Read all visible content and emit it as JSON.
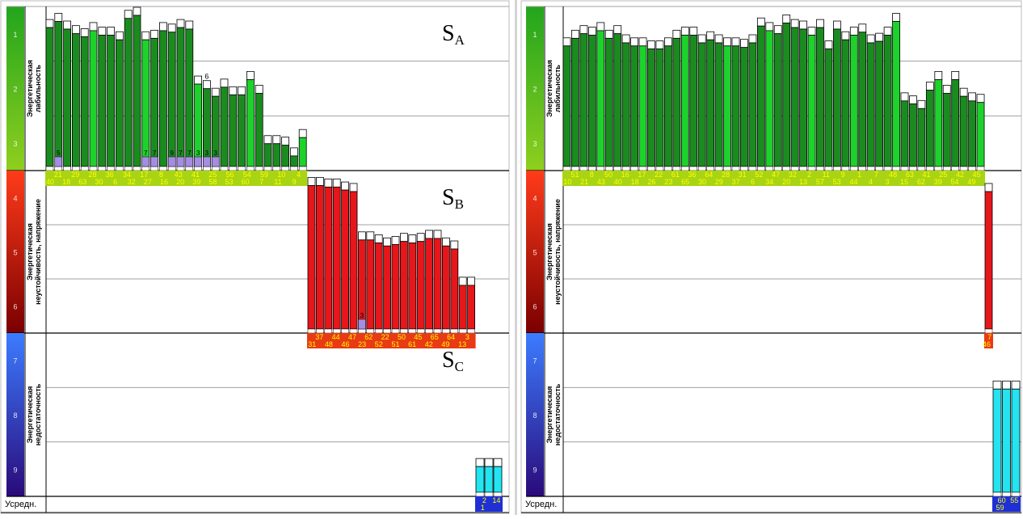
{
  "zones": [
    {
      "name": "zone1",
      "ticks": [
        "1",
        "2",
        "3"
      ],
      "label": "Энергетическая лабильность",
      "label_lines": [
        "Энергетическая",
        "лабильность"
      ],
      "colors": [
        "#22a51d",
        "#8fcf1e"
      ],
      "tag_bg": "#a8d414",
      "tag_fg": "#ffff00"
    },
    {
      "name": "zone2",
      "ticks": [
        "4",
        "5",
        "6"
      ],
      "label": "Энергетическая неустойчивость, напряжение",
      "label_lines": [
        "Энергетическая",
        "неустойчивость, напряжение"
      ],
      "colors": [
        "#ff3b1a",
        "#7a0000"
      ],
      "tag_bg": "#e83a14",
      "tag_fg": "#ffff00"
    },
    {
      "name": "zone3",
      "ticks": [
        "7",
        "8",
        "9"
      ],
      "label": "Энергетическая недостаточность",
      "label_lines": [
        "Энергетическая",
        "недостаточность"
      ],
      "colors": [
        "#3c7cff",
        "#2a0a7a"
      ],
      "tag_bg": "#1f2fd6",
      "tag_fg": "#ffff00"
    }
  ],
  "footer_label": "Усредн.",
  "chart_data": [
    {
      "type": "bar",
      "name": "left-chart",
      "section_labels": [
        {
          "main": "S",
          "sub": "A",
          "zone": 0
        },
        {
          "main": "S",
          "sub": "B",
          "zone": 1
        },
        {
          "main": "S",
          "sub": "C",
          "zone": 2
        }
      ],
      "groups": [
        {
          "zone": 0,
          "light_every": 6,
          "values": [
            0.92,
            0.96,
            0.91,
            0.88,
            0.86,
            0.9,
            0.87,
            0.87,
            0.84,
            0.98,
            1.0,
            0.84,
            0.85,
            0.9,
            0.89,
            0.92,
            0.91,
            0.55,
            0.52,
            0.47,
            0.53,
            0.48,
            0.48,
            0.58,
            0.49,
            0.16,
            0.16,
            0.15,
            0.08,
            0.2
          ],
          "labels_top": [
            "21",
            "29",
            "28",
            "36",
            "34",
            "17",
            "8",
            "43",
            "41",
            "25",
            "56",
            "54",
            "59",
            "10",
            "4"
          ],
          "labels_bottom": [
            "40",
            "18",
            "63",
            "30",
            "6",
            "32",
            "27",
            "16",
            "20",
            "39",
            "58",
            "53",
            "60",
            "7",
            "11",
            "9"
          ],
          "marks": [
            {
              "i": 1,
              "t": "5"
            },
            {
              "i": 11,
              "t": "7"
            },
            {
              "i": 12,
              "t": "7"
            },
            {
              "i": 14,
              "t": "9"
            },
            {
              "i": 15,
              "t": "7"
            },
            {
              "i": 16,
              "t": "7"
            },
            {
              "i": 17,
              "t": "3"
            },
            {
              "i": 18,
              "t": "3"
            },
            {
              "i": 19,
              "t": "3"
            },
            {
              "i": 18,
              "t": "6",
              "top": true
            }
          ]
        },
        {
          "zone": 1,
          "light_every": 0,
          "values": [
            0.96,
            0.96,
            0.95,
            0.95,
            0.93,
            0.92,
            0.6,
            0.6,
            0.58,
            0.56,
            0.57,
            0.59,
            0.58,
            0.59,
            0.61,
            0.61,
            0.56,
            0.54,
            0.3,
            0.3
          ],
          "labels_top": [
            "37",
            "44",
            "47",
            "62",
            "22",
            "50",
            "45",
            "65",
            "64",
            "3"
          ],
          "labels_bottom": [
            "31",
            "48",
            "46",
            "23",
            "52",
            "51",
            "61",
            "42",
            "49",
            "13"
          ],
          "marks": [
            {
              "i": 6,
              "t": "3"
            }
          ]
        },
        {
          "zone": 2,
          "light_every": 0,
          "values": [
            0.18,
            0.18,
            0.18
          ],
          "labels_top": [
            "2",
            "14"
          ],
          "labels_bottom": [
            "1"
          ],
          "marks": []
        }
      ]
    },
    {
      "type": "bar",
      "name": "right-chart",
      "section_labels": [],
      "groups": [
        {
          "zone": 0,
          "light_every": 5,
          "values": [
            0.8,
            0.85,
            0.88,
            0.87,
            0.9,
            0.85,
            0.88,
            0.82,
            0.8,
            0.8,
            0.78,
            0.78,
            0.8,
            0.85,
            0.87,
            0.87,
            0.82,
            0.84,
            0.82,
            0.8,
            0.8,
            0.79,
            0.82,
            0.93,
            0.9,
            0.88,
            0.95,
            0.92,
            0.91,
            0.87,
            0.92,
            0.78,
            0.91,
            0.84,
            0.87,
            0.89,
            0.82,
            0.83,
            0.87,
            0.96,
            0.44,
            0.42,
            0.39,
            0.51,
            0.58,
            0.49,
            0.58,
            0.47,
            0.44,
            0.43
          ],
          "labels_top": [
            "51",
            "8",
            "50",
            "16",
            "17",
            "22",
            "61",
            "36",
            "64",
            "28",
            "31",
            "52",
            "47",
            "32",
            "2",
            "11",
            "9",
            "1",
            "7",
            "48",
            "63",
            "41",
            "25",
            "42",
            "45"
          ],
          "labels_bottom": [
            "10",
            "21",
            "43",
            "40",
            "18",
            "26",
            "23",
            "65",
            "30",
            "29",
            "37",
            "6",
            "34",
            "20",
            "13",
            "57",
            "53",
            "44",
            "4",
            "3",
            "15",
            "62",
            "39",
            "54",
            "49"
          ],
          "marks": []
        },
        {
          "zone": 1,
          "light_every": 0,
          "values": [
            0.92
          ],
          "labels_top": [
            "7"
          ],
          "labels_bottom": [
            "46"
          ],
          "marks": []
        },
        {
          "zone": 2,
          "light_every": 0,
          "values": [
            0.69,
            0.69,
            0.69
          ],
          "labels_top": [
            "60",
            "55"
          ],
          "labels_bottom": [
            "59"
          ],
          "marks": []
        }
      ]
    }
  ]
}
